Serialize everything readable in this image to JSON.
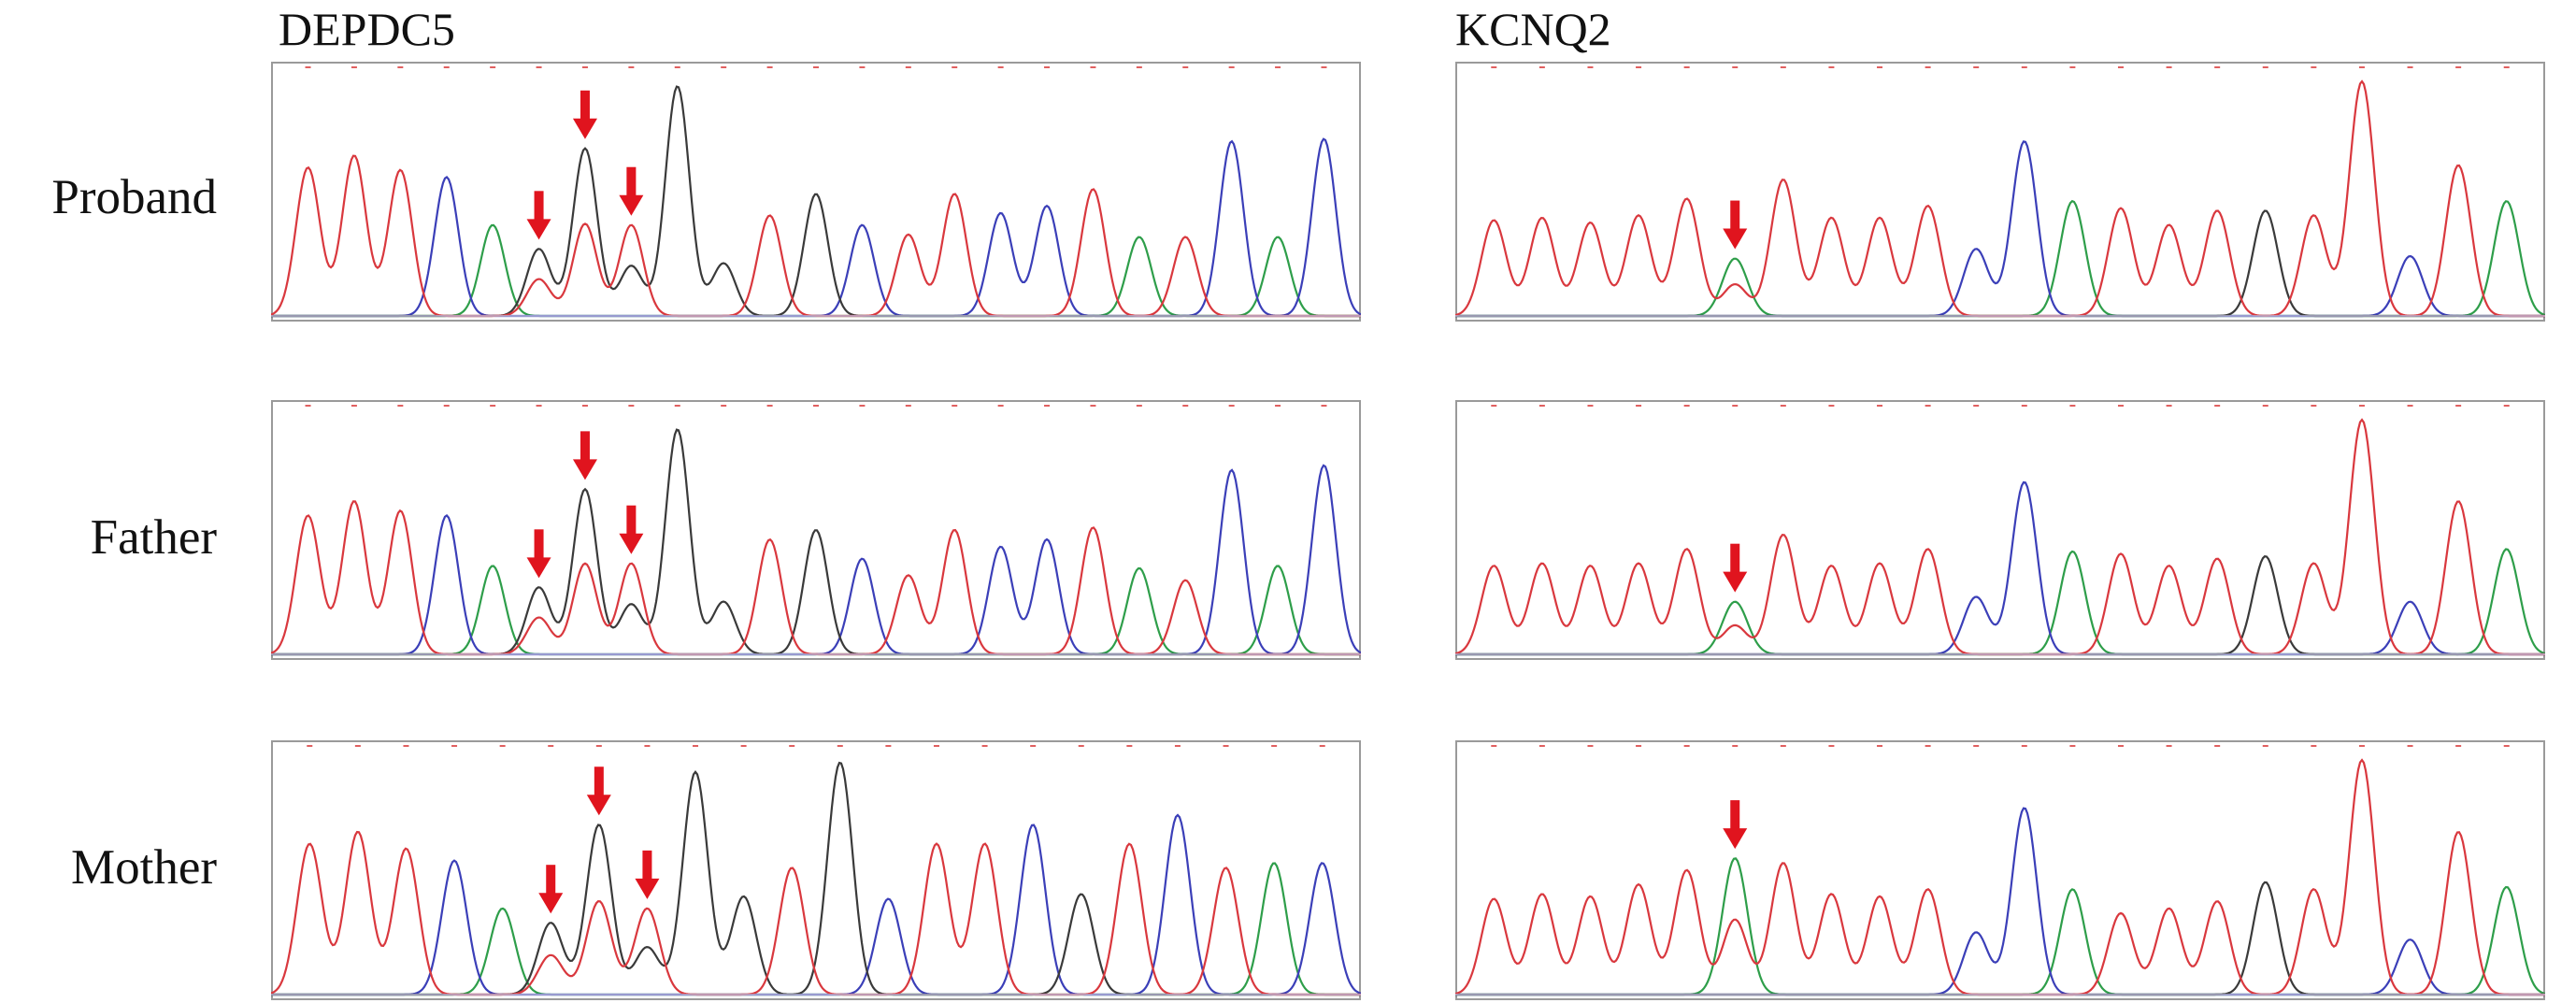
{
  "columns": [
    {
      "title": "DEPDC5"
    },
    {
      "title": "KCNQ2"
    }
  ],
  "rows": [
    {
      "label": "Proband"
    },
    {
      "label": "Father"
    },
    {
      "label": "Mother"
    }
  ],
  "colors": {
    "A": "#2e9e4a",
    "C": "#3b3fb8",
    "G": "#3a3a3a",
    "T": "#d9383e",
    "arrow": "#e0141e",
    "frame": "#9a9a9a",
    "ticks": "#e06060"
  },
  "traces": {
    "DEPDC5": {
      "Proband": [
        [
          "T",
          0.62
        ],
        [
          "T",
          0.67
        ],
        [
          "T",
          0.61
        ],
        [
          "C",
          0.58
        ],
        [
          "A",
          0.38
        ],
        [
          "G",
          0.28
        ],
        [
          "G",
          0.7
        ],
        [
          "T",
          0.38
        ],
        [
          "G",
          0.96
        ],
        [
          "G",
          0.22
        ],
        [
          "T",
          0.42
        ],
        [
          "G",
          0.51
        ],
        [
          "C",
          0.38
        ],
        [
          "T",
          0.34
        ],
        [
          "T",
          0.51
        ],
        [
          "C",
          0.43
        ],
        [
          "C",
          0.46
        ],
        [
          "T",
          0.53
        ],
        [
          "A",
          0.33
        ],
        [
          "T",
          0.33
        ],
        [
          "C",
          0.73
        ],
        [
          "A",
          0.33
        ],
        [
          "C",
          0.74
        ]
      ],
      "Father": [
        [
          "T",
          0.58
        ],
        [
          "T",
          0.64
        ],
        [
          "T",
          0.6
        ],
        [
          "C",
          0.58
        ],
        [
          "A",
          0.37
        ],
        [
          "G",
          0.28
        ],
        [
          "G",
          0.69
        ],
        [
          "T",
          0.38
        ],
        [
          "G",
          0.94
        ],
        [
          "G",
          0.22
        ],
        [
          "T",
          0.48
        ],
        [
          "G",
          0.52
        ],
        [
          "C",
          0.4
        ],
        [
          "T",
          0.33
        ],
        [
          "T",
          0.52
        ],
        [
          "C",
          0.45
        ],
        [
          "C",
          0.48
        ],
        [
          "T",
          0.53
        ],
        [
          "A",
          0.36
        ],
        [
          "T",
          0.31
        ],
        [
          "C",
          0.77
        ],
        [
          "A",
          0.37
        ],
        [
          "C",
          0.79
        ]
      ],
      "Mother": [
        [
          "T",
          0.63
        ],
        [
          "T",
          0.68
        ],
        [
          "T",
          0.61
        ],
        [
          "C",
          0.56
        ],
        [
          "A",
          0.36
        ],
        [
          "G",
          0.3
        ],
        [
          "G",
          0.71
        ],
        [
          "T",
          0.36
        ],
        [
          "G",
          0.93
        ],
        [
          "G",
          0.41
        ],
        [
          "T",
          0.53
        ],
        [
          "G",
          0.97
        ],
        [
          "C",
          0.4
        ],
        [
          "T",
          0.63
        ],
        [
          "T",
          0.63
        ],
        [
          "C",
          0.71
        ],
        [
          "G",
          0.42
        ],
        [
          "T",
          0.63
        ],
        [
          "C",
          0.75
        ],
        [
          "T",
          0.53
        ],
        [
          "A",
          0.55
        ],
        [
          "C",
          0.55
        ]
      ]
    },
    "KCNQ2": {
      "Proband": [
        [
          "T",
          0.4
        ],
        [
          "T",
          0.41
        ],
        [
          "T",
          0.39
        ],
        [
          "T",
          0.42
        ],
        [
          "T",
          0.49
        ],
        [
          "A",
          0.24
        ],
        [
          "T",
          0.57
        ],
        [
          "T",
          0.41
        ],
        [
          "T",
          0.41
        ],
        [
          "T",
          0.46
        ],
        [
          "C",
          0.28
        ],
        [
          "C",
          0.73
        ],
        [
          "A",
          0.48
        ],
        [
          "T",
          0.45
        ],
        [
          "T",
          0.38
        ],
        [
          "T",
          0.44
        ],
        [
          "G",
          0.44
        ],
        [
          "T",
          0.42
        ],
        [
          "T",
          0.98
        ],
        [
          "C",
          0.25
        ],
        [
          "T",
          0.63
        ],
        [
          "A",
          0.48
        ]
      ],
      "Father": [
        [
          "T",
          0.37
        ],
        [
          "T",
          0.38
        ],
        [
          "T",
          0.37
        ],
        [
          "T",
          0.38
        ],
        [
          "T",
          0.44
        ],
        [
          "A",
          0.22
        ],
        [
          "T",
          0.5
        ],
        [
          "T",
          0.37
        ],
        [
          "T",
          0.38
        ],
        [
          "T",
          0.44
        ],
        [
          "C",
          0.24
        ],
        [
          "C",
          0.72
        ],
        [
          "A",
          0.43
        ],
        [
          "T",
          0.42
        ],
        [
          "T",
          0.37
        ],
        [
          "T",
          0.4
        ],
        [
          "G",
          0.41
        ],
        [
          "T",
          0.38
        ],
        [
          "T",
          0.98
        ],
        [
          "C",
          0.22
        ],
        [
          "T",
          0.64
        ],
        [
          "A",
          0.44
        ]
      ],
      "Mother": [
        [
          "T",
          0.4
        ],
        [
          "T",
          0.42
        ],
        [
          "T",
          0.41
        ],
        [
          "T",
          0.46
        ],
        [
          "T",
          0.52
        ],
        [
          "A",
          0.57
        ],
        [
          "T",
          0.55
        ],
        [
          "T",
          0.42
        ],
        [
          "T",
          0.41
        ],
        [
          "T",
          0.44
        ],
        [
          "C",
          0.26
        ],
        [
          "C",
          0.78
        ],
        [
          "A",
          0.44
        ],
        [
          "T",
          0.34
        ],
        [
          "T",
          0.36
        ],
        [
          "T",
          0.39
        ],
        [
          "G",
          0.47
        ],
        [
          "T",
          0.44
        ],
        [
          "T",
          0.98
        ],
        [
          "C",
          0.23
        ],
        [
          "T",
          0.68
        ],
        [
          "A",
          0.45
        ]
      ]
    }
  },
  "arrows": {
    "DEPDC5": {
      "Proband": [
        5,
        6,
        7
      ],
      "Father": [
        5,
        6,
        7
      ],
      "Mother": [
        5,
        6,
        7
      ]
    },
    "KCNQ2": {
      "Proband": [
        5
      ],
      "Father": [
        5
      ],
      "Mother": [
        5
      ]
    }
  }
}
